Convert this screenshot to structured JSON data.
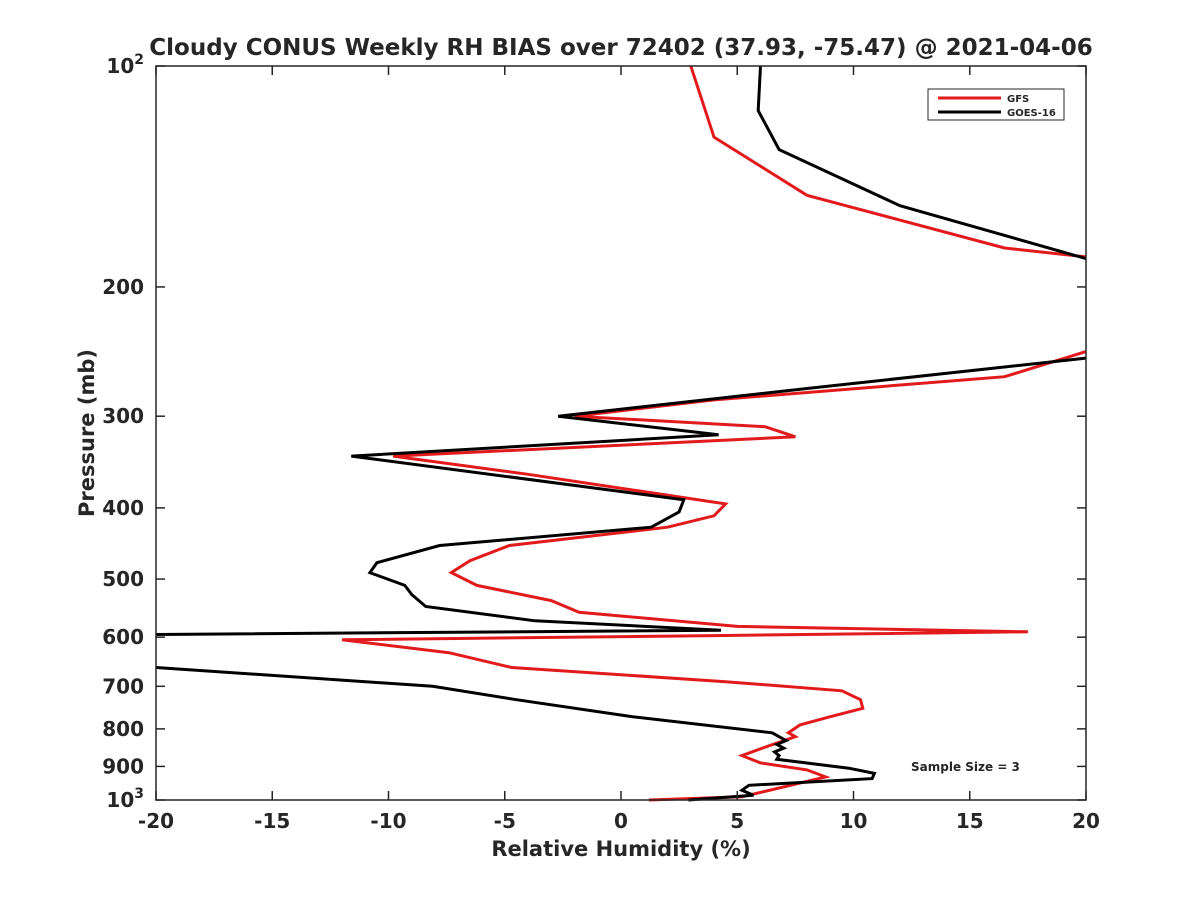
{
  "chart_data": {
    "type": "line",
    "title": "Cloudy CONUS Weekly RH BIAS over 72402 (37.93, -75.47) @ 2021-04-06",
    "xlabel": "Relative Humidity (%)",
    "ylabel": "Pressure (mb)",
    "xlim": [
      -20,
      20
    ],
    "ylim": [
      100,
      1000
    ],
    "y_scale": "log",
    "y_reversed": true,
    "grid": false,
    "legend_position": "top-right",
    "x_ticks": [
      "-20",
      "-15",
      "-10",
      "-5",
      "0",
      "5",
      "10",
      "15",
      "20"
    ],
    "y_ticks": [
      {
        "value": 100,
        "label": "10",
        "sup": "2"
      },
      {
        "value": 200,
        "label": "200",
        "sup": ""
      },
      {
        "value": 300,
        "label": "300",
        "sup": ""
      },
      {
        "value": 400,
        "label": "400",
        "sup": ""
      },
      {
        "value": 500,
        "label": "500",
        "sup": ""
      },
      {
        "value": 600,
        "label": "600",
        "sup": ""
      },
      {
        "value": 700,
        "label": "700",
        "sup": ""
      },
      {
        "value": 800,
        "label": "800",
        "sup": ""
      },
      {
        "value": 900,
        "label": "900",
        "sup": ""
      },
      {
        "value": 1000,
        "label": "10",
        "sup": "3"
      }
    ],
    "annotation": "Sample Size = 3",
    "series": [
      {
        "name": "GFS",
        "color": "#e31a1c",
        "points": [
          [
            3.0,
            100
          ],
          [
            4.0,
            125
          ],
          [
            8.0,
            150
          ],
          [
            16.5,
            177
          ],
          [
            20.0,
            182
          ],
          [
            null,
            null
          ],
          [
            20.0,
            245
          ],
          [
            16.5,
            265
          ],
          [
            4.0,
            285
          ],
          [
            -2.0,
            300
          ],
          [
            6.2,
            310
          ],
          [
            7.5,
            320
          ],
          [
            -9.8,
            340
          ],
          [
            -4.0,
            360
          ],
          [
            4.5,
            395
          ],
          [
            4.0,
            410
          ],
          [
            2.0,
            425
          ],
          [
            -4.8,
            450
          ],
          [
            -6.5,
            472
          ],
          [
            -7.3,
            490
          ],
          [
            -6.2,
            510
          ],
          [
            -3.0,
            535
          ],
          [
            -1.8,
            555
          ],
          [
            5.0,
            580
          ],
          [
            17.5,
            590
          ],
          [
            4.0,
            597
          ],
          [
            -12.0,
            605
          ],
          [
            -7.4,
            630
          ],
          [
            -4.7,
            660
          ],
          [
            4.5,
            690
          ],
          [
            9.5,
            710
          ],
          [
            10.3,
            730
          ],
          [
            10.4,
            750
          ],
          [
            9.0,
            770
          ],
          [
            7.7,
            790
          ],
          [
            7.2,
            810
          ],
          [
            7.5,
            820
          ],
          [
            6.3,
            845
          ],
          [
            5.2,
            870
          ],
          [
            6.0,
            890
          ],
          [
            8.0,
            910
          ],
          [
            8.8,
            930
          ],
          [
            5.2,
            990
          ],
          [
            1.2,
            1000
          ]
        ]
      },
      {
        "name": "GOES-16",
        "color": "#000000",
        "points": [
          [
            6.0,
            100
          ],
          [
            5.9,
            115
          ],
          [
            6.8,
            130
          ],
          [
            12.0,
            155
          ],
          [
            20.0,
            183
          ],
          [
            null,
            null
          ],
          [
            20.0,
            250
          ],
          [
            8.0,
            275
          ],
          [
            -2.7,
            300
          ],
          [
            4.2,
            318
          ],
          [
            -11.6,
            340
          ],
          [
            2.7,
            390
          ],
          [
            2.5,
            405
          ],
          [
            1.3,
            425
          ],
          [
            -7.8,
            450
          ],
          [
            -10.5,
            475
          ],
          [
            -10.8,
            490
          ],
          [
            -9.3,
            510
          ],
          [
            -9.0,
            525
          ],
          [
            -8.4,
            545
          ],
          [
            -3.7,
            570
          ],
          [
            4.3,
            587
          ],
          [
            -20.0,
            595
          ],
          [
            null,
            null
          ],
          [
            -20.0,
            660
          ],
          [
            -8.1,
            700
          ],
          [
            -4.5,
            730
          ],
          [
            0.5,
            770
          ],
          [
            6.5,
            810
          ],
          [
            7.1,
            830
          ],
          [
            6.7,
            840
          ],
          [
            7.0,
            850
          ],
          [
            6.6,
            860
          ],
          [
            6.8,
            870
          ],
          [
            6.7,
            880
          ],
          [
            9.8,
            905
          ],
          [
            10.9,
            920
          ],
          [
            10.8,
            935
          ],
          [
            5.5,
            955
          ],
          [
            5.2,
            970
          ],
          [
            5.7,
            985
          ],
          [
            2.9,
            1000
          ]
        ]
      }
    ]
  }
}
